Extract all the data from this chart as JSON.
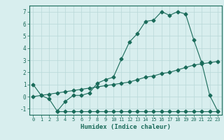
{
  "title": "",
  "xlabel": "Humidex (Indice chaleur)",
  "ylabel": "",
  "background_color": "#d8eeee",
  "line1_x": [
    0,
    1,
    2,
    3,
    4,
    5,
    6,
    7,
    8,
    9,
    10,
    11,
    12,
    13,
    14,
    15,
    16,
    17,
    18,
    19,
    20,
    21,
    22,
    23
  ],
  "line1_y": [
    1.0,
    0.1,
    -0.2,
    -1.2,
    -0.4,
    0.1,
    0.1,
    0.3,
    1.1,
    1.4,
    1.6,
    3.1,
    4.5,
    5.2,
    6.2,
    6.3,
    7.0,
    6.7,
    7.0,
    6.8,
    4.7,
    2.8,
    0.1,
    -1.2
  ],
  "line2_x": [
    3,
    4,
    5,
    6,
    7,
    8,
    9,
    10,
    11,
    12,
    13,
    14,
    15,
    16,
    17,
    18,
    19,
    20,
    21,
    22,
    23
  ],
  "line2_y": [
    -1.2,
    -1.2,
    -1.2,
    -1.2,
    -1.2,
    -1.2,
    -1.2,
    -1.2,
    -1.2,
    -1.2,
    -1.2,
    -1.2,
    -1.2,
    -1.2,
    -1.2,
    -1.2,
    -1.2,
    -1.2,
    -1.2,
    -1.2,
    -1.2
  ],
  "line3_x": [
    0,
    1,
    2,
    3,
    4,
    5,
    6,
    7,
    8,
    9,
    10,
    11,
    12,
    13,
    14,
    15,
    16,
    17,
    18,
    19,
    20,
    21,
    22,
    23
  ],
  "line3_y": [
    0.0,
    0.1,
    0.2,
    0.3,
    0.4,
    0.5,
    0.6,
    0.7,
    0.8,
    0.9,
    1.0,
    1.1,
    1.2,
    1.4,
    1.6,
    1.7,
    1.9,
    2.0,
    2.2,
    2.4,
    2.6,
    2.7,
    2.8,
    2.9
  ],
  "line_color": "#1a6b5a",
  "xlim": [
    -0.5,
    23.5
  ],
  "ylim": [
    -1.5,
    7.5
  ],
  "xticks": [
    0,
    1,
    2,
    3,
    4,
    5,
    6,
    7,
    8,
    9,
    10,
    11,
    12,
    13,
    14,
    15,
    16,
    17,
    18,
    19,
    20,
    21,
    22,
    23
  ],
  "yticks": [
    -1,
    0,
    1,
    2,
    3,
    4,
    5,
    6,
    7
  ],
  "grid_color": "#b8d8d8",
  "marker": "D",
  "markersize": 2.5,
  "linewidth": 0.8
}
